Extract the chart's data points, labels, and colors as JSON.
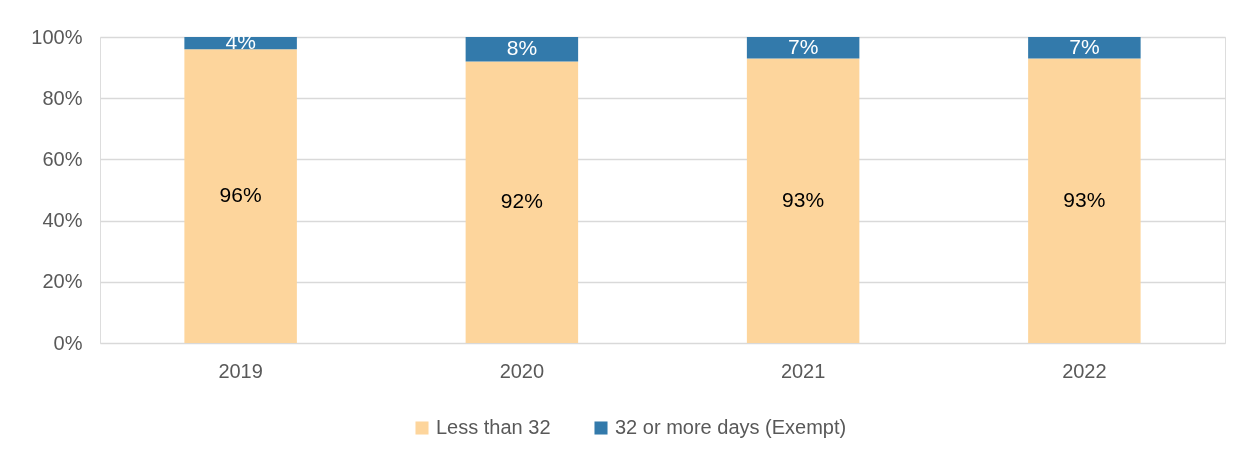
{
  "chart_data": {
    "type": "bar",
    "stacked": true,
    "categories": [
      "2019",
      "2020",
      "2021",
      "2022"
    ],
    "series": [
      {
        "name": "Less than 32",
        "color": "#fdd59c",
        "values": [
          96,
          92,
          93,
          93
        ],
        "value_labels": [
          "96%",
          "92%",
          "93%",
          "93%"
        ]
      },
      {
        "name": "32 or more days (Exempt)",
        "color": "#337aab",
        "values": [
          4,
          8,
          7,
          7
        ],
        "value_labels": [
          "4%",
          "8%",
          "7%",
          "7%"
        ]
      }
    ],
    "ylim": [
      0,
      100
    ],
    "yticks": [
      {
        "value": 0,
        "label": "0%"
      },
      {
        "value": 20,
        "label": "20%"
      },
      {
        "value": 40,
        "label": "40%"
      },
      {
        "value": 60,
        "label": "60%"
      },
      {
        "value": 80,
        "label": "80%"
      },
      {
        "value": 100,
        "label": "100%"
      }
    ],
    "grid": "y",
    "legend": "bottom"
  }
}
